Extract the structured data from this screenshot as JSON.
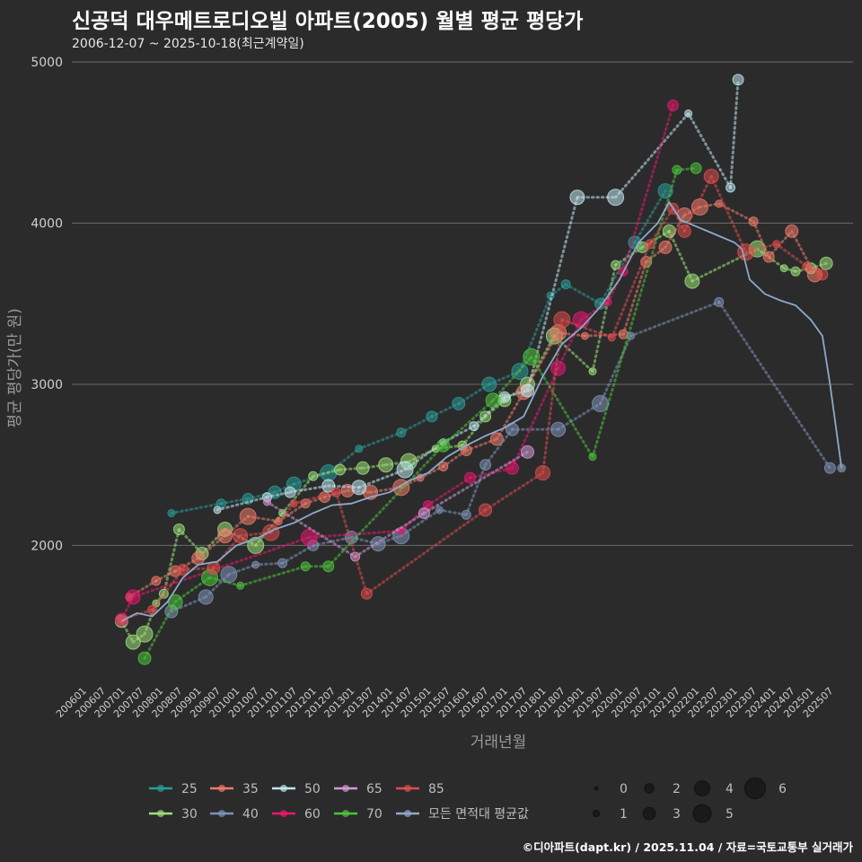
{
  "header": {
    "title": "신공덕 대우메트로디오빌 아파트(2005) 월별 평균 평당가",
    "subtitle": "2006-12-07 ~ 2025-10-18(최근계약일)"
  },
  "footer": {
    "credit": "©디아파트(dapt.kr) / 2025.11.04 / 자료=국토교통부 실거래가"
  },
  "colors": {
    "background": "#2b2b2c",
    "grid": "#6b6b6b",
    "series": {
      "25": "#2a9d98",
      "30": "#9fe07a",
      "35": "#f07b6a",
      "40": "#7f93b8",
      "50": "#bfe8ef",
      "60": "#e8186f",
      "65": "#d19ad6",
      "70": "#4cc43c",
      "85": "#e04d4d",
      "avg": "#8fa9c9"
    }
  },
  "legend": {
    "series_labels": [
      "25",
      "35",
      "50",
      "65",
      "85",
      "30",
      "40",
      "60",
      "70",
      "모든 면적대 평균값"
    ],
    "size_labels": [
      "0",
      "2",
      "4",
      "6",
      "1",
      "3",
      "5"
    ]
  },
  "chart_data": {
    "type": "scatter",
    "title": "신공덕 대우메트로디오빌 아파트(2005) 월별 평균 평당가",
    "xlabel": "거래년월",
    "ylabel": "평균 평당가(만 원)",
    "ylim": [
      1150,
      5050
    ],
    "yticks": [
      2000,
      3000,
      4000,
      5000
    ],
    "xticks": [
      "200601",
      "200607",
      "200701",
      "200707",
      "200801",
      "200807",
      "200901",
      "200907",
      "201001",
      "201007",
      "201101",
      "201107",
      "201201",
      "201207",
      "201301",
      "201307",
      "201401",
      "201407",
      "201501",
      "201507",
      "201601",
      "201607",
      "201701",
      "201707",
      "201801",
      "201807",
      "201901",
      "201907",
      "202001",
      "202007",
      "202101",
      "202107",
      "202201",
      "202207",
      "202301",
      "202307",
      "202401",
      "202407",
      "202501",
      "202507"
    ],
    "size_legend": [
      0,
      1,
      2,
      3,
      4,
      5,
      6
    ],
    "series": [
      {
        "name": "25",
        "color": "#2a9d98",
        "points": [
          [
            2008.3,
            2200
          ],
          [
            2009.6,
            2260
          ],
          [
            2010.3,
            2290
          ],
          [
            2011.0,
            2330
          ],
          [
            2011.5,
            2380
          ],
          [
            2012.4,
            2450
          ],
          [
            2013.2,
            2600
          ],
          [
            2014.3,
            2700
          ],
          [
            2015.1,
            2800
          ],
          [
            2015.8,
            2880
          ],
          [
            2016.6,
            3000
          ],
          [
            2017.4,
            3080
          ],
          [
            2018.2,
            3550
          ],
          [
            2018.6,
            3620
          ],
          [
            2019.5,
            3500
          ],
          [
            2020.4,
            3880
          ],
          [
            2021.2,
            4200
          ]
        ]
      },
      {
        "name": "30",
        "color": "#9fe07a",
        "points": [
          [
            2007.0,
            1530
          ],
          [
            2007.3,
            1400
          ],
          [
            2007.6,
            1450
          ],
          [
            2007.9,
            1640
          ],
          [
            2008.1,
            1700
          ],
          [
            2008.5,
            2100
          ],
          [
            2009.1,
            1950
          ],
          [
            2009.7,
            2100
          ],
          [
            2010.5,
            2000
          ],
          [
            2011.2,
            2200
          ],
          [
            2012.0,
            2430
          ],
          [
            2012.7,
            2470
          ],
          [
            2013.3,
            2480
          ],
          [
            2013.9,
            2500
          ],
          [
            2014.5,
            2520
          ],
          [
            2015.2,
            2600
          ],
          [
            2015.9,
            2620
          ],
          [
            2016.5,
            2800
          ],
          [
            2017.0,
            2900
          ],
          [
            2017.6,
            3000
          ],
          [
            2018.3,
            3300
          ],
          [
            2019.3,
            3080
          ],
          [
            2019.9,
            3740
          ],
          [
            2020.6,
            3850
          ],
          [
            2021.3,
            3950
          ],
          [
            2021.9,
            3640
          ],
          [
            2023.6,
            3840
          ],
          [
            2024.3,
            3720
          ],
          [
            2024.6,
            3700
          ],
          [
            2025.0,
            3720
          ],
          [
            2025.4,
            3750
          ]
        ]
      },
      {
        "name": "35",
        "color": "#f07b6a",
        "points": [
          [
            2007.2,
            1680
          ],
          [
            2007.9,
            1780
          ],
          [
            2008.4,
            1840
          ],
          [
            2009.0,
            1920
          ],
          [
            2009.7,
            2060
          ],
          [
            2010.3,
            2180
          ],
          [
            2011.1,
            2150
          ],
          [
            2011.8,
            2260
          ],
          [
            2012.3,
            2300
          ],
          [
            2012.9,
            2340
          ],
          [
            2013.5,
            2330
          ],
          [
            2014.3,
            2360
          ],
          [
            2014.8,
            2420
          ],
          [
            2015.4,
            2490
          ],
          [
            2016.0,
            2590
          ],
          [
            2016.8,
            2660
          ],
          [
            2017.5,
            2950
          ],
          [
            2018.4,
            3320
          ],
          [
            2019.1,
            3300
          ],
          [
            2020.1,
            3310
          ],
          [
            2020.7,
            3760
          ],
          [
            2021.2,
            3850
          ],
          [
            2021.7,
            4050
          ],
          [
            2022.1,
            4100
          ],
          [
            2022.6,
            4120
          ],
          [
            2023.5,
            4010
          ],
          [
            2023.9,
            3790
          ],
          [
            2024.5,
            3950
          ],
          [
            2025.1,
            3680
          ]
        ]
      },
      {
        "name": "40",
        "color": "#7f93b8",
        "points": [
          [
            2008.3,
            1590
          ],
          [
            2009.2,
            1680
          ],
          [
            2009.8,
            1820
          ],
          [
            2010.5,
            1880
          ],
          [
            2011.2,
            1890
          ],
          [
            2012.0,
            2000
          ],
          [
            2013.0,
            2050
          ],
          [
            2013.7,
            2010
          ],
          [
            2014.3,
            2060
          ],
          [
            2015.3,
            2220
          ],
          [
            2016.0,
            2190
          ],
          [
            2016.5,
            2500
          ],
          [
            2017.2,
            2720
          ],
          [
            2018.4,
            2720
          ],
          [
            2019.5,
            2880
          ],
          [
            2020.3,
            3300
          ],
          [
            2022.6,
            3510
          ],
          [
            2025.5,
            2480
          ]
        ]
      },
      {
        "name": "50",
        "color": "#bfe8ef",
        "points": [
          [
            2009.5,
            2220
          ],
          [
            2010.8,
            2300
          ],
          [
            2011.4,
            2330
          ],
          [
            2012.4,
            2370
          ],
          [
            2013.2,
            2360
          ],
          [
            2014.4,
            2470
          ],
          [
            2015.4,
            2640
          ],
          [
            2016.2,
            2740
          ],
          [
            2017.0,
            2920
          ],
          [
            2017.6,
            2960
          ],
          [
            2018.9,
            4160
          ],
          [
            2019.9,
            4160
          ],
          [
            2021.8,
            4680
          ],
          [
            2022.9,
            4220
          ],
          [
            2023.1,
            4890
          ]
        ]
      },
      {
        "name": "60",
        "color": "#e8186f",
        "points": [
          [
            2007.0,
            1540
          ],
          [
            2007.3,
            1680
          ],
          [
            2011.9,
            2050
          ],
          [
            2014.3,
            2090
          ],
          [
            2015.0,
            2250
          ],
          [
            2016.1,
            2420
          ],
          [
            2017.2,
            2480
          ],
          [
            2018.4,
            3100
          ],
          [
            2019.0,
            3400
          ],
          [
            2019.7,
            3510
          ],
          [
            2020.1,
            3700
          ],
          [
            2021.4,
            4730
          ]
        ]
      },
      {
        "name": "65",
        "color": "#d19ad6",
        "points": [
          [
            2010.8,
            2270
          ],
          [
            2013.1,
            1930
          ],
          [
            2014.9,
            2200
          ],
          [
            2017.6,
            2580
          ]
        ]
      },
      {
        "name": "70",
        "color": "#4cc43c",
        "points": [
          [
            2007.6,
            1300
          ],
          [
            2008.4,
            1650
          ],
          [
            2009.3,
            1800
          ],
          [
            2010.1,
            1750
          ],
          [
            2011.8,
            1870
          ],
          [
            2012.4,
            1870
          ],
          [
            2015.4,
            2620
          ],
          [
            2016.7,
            2900
          ],
          [
            2017.7,
            3170
          ],
          [
            2019.3,
            2550
          ],
          [
            2021.5,
            4330
          ],
          [
            2022.0,
            4340
          ]
        ]
      },
      {
        "name": "85",
        "color": "#e04d4d",
        "points": [
          [
            2007.0,
            1540
          ],
          [
            2007.8,
            1600
          ],
          [
            2008.6,
            1850
          ],
          [
            2009.4,
            1860
          ],
          [
            2010.1,
            2060
          ],
          [
            2010.9,
            2080
          ],
          [
            2011.5,
            2260
          ],
          [
            2012.6,
            2330
          ],
          [
            2013.4,
            1700
          ],
          [
            2016.5,
            2220
          ],
          [
            2018.0,
            2450
          ],
          [
            2018.5,
            3400
          ],
          [
            2019.8,
            3290
          ],
          [
            2020.8,
            3870
          ],
          [
            2021.4,
            4090
          ],
          [
            2021.7,
            3950
          ],
          [
            2022.4,
            4290
          ],
          [
            2023.3,
            3820
          ],
          [
            2024.1,
            3870
          ],
          [
            2024.9,
            3730
          ],
          [
            2025.3,
            3680
          ]
        ]
      },
      {
        "name": "모든 면적대 평균값",
        "color": "#8fa9c9",
        "line": [
          [
            2007.0,
            1530
          ],
          [
            2007.4,
            1580
          ],
          [
            2007.8,
            1560
          ],
          [
            2008.2,
            1650
          ],
          [
            2008.6,
            1800
          ],
          [
            2009.0,
            1880
          ],
          [
            2009.5,
            1900
          ],
          [
            2010.0,
            2000
          ],
          [
            2010.5,
            2040
          ],
          [
            2011.0,
            2100
          ],
          [
            2011.5,
            2140
          ],
          [
            2012.0,
            2200
          ],
          [
            2012.5,
            2250
          ],
          [
            2013.0,
            2260
          ],
          [
            2013.5,
            2300
          ],
          [
            2014.0,
            2330
          ],
          [
            2014.5,
            2400
          ],
          [
            2015.0,
            2450
          ],
          [
            2015.5,
            2550
          ],
          [
            2016.0,
            2620
          ],
          [
            2016.5,
            2680
          ],
          [
            2017.0,
            2730
          ],
          [
            2017.5,
            2800
          ],
          [
            2018.0,
            3050
          ],
          [
            2018.5,
            3250
          ],
          [
            2019.0,
            3350
          ],
          [
            2019.5,
            3480
          ],
          [
            2020.0,
            3650
          ],
          [
            2020.5,
            3880
          ],
          [
            2021.0,
            4000
          ],
          [
            2021.3,
            4130
          ],
          [
            2021.6,
            4020
          ],
          [
            2022.0,
            3980
          ],
          [
            2022.5,
            3930
          ],
          [
            2023.0,
            3880
          ],
          [
            2023.2,
            3840
          ],
          [
            2023.4,
            3650
          ],
          [
            2023.8,
            3560
          ],
          [
            2024.2,
            3520
          ],
          [
            2024.6,
            3490
          ],
          [
            2025.0,
            3400
          ],
          [
            2025.3,
            3300
          ],
          [
            2025.5,
            3000
          ],
          [
            2025.8,
            2480
          ]
        ]
      }
    ]
  }
}
